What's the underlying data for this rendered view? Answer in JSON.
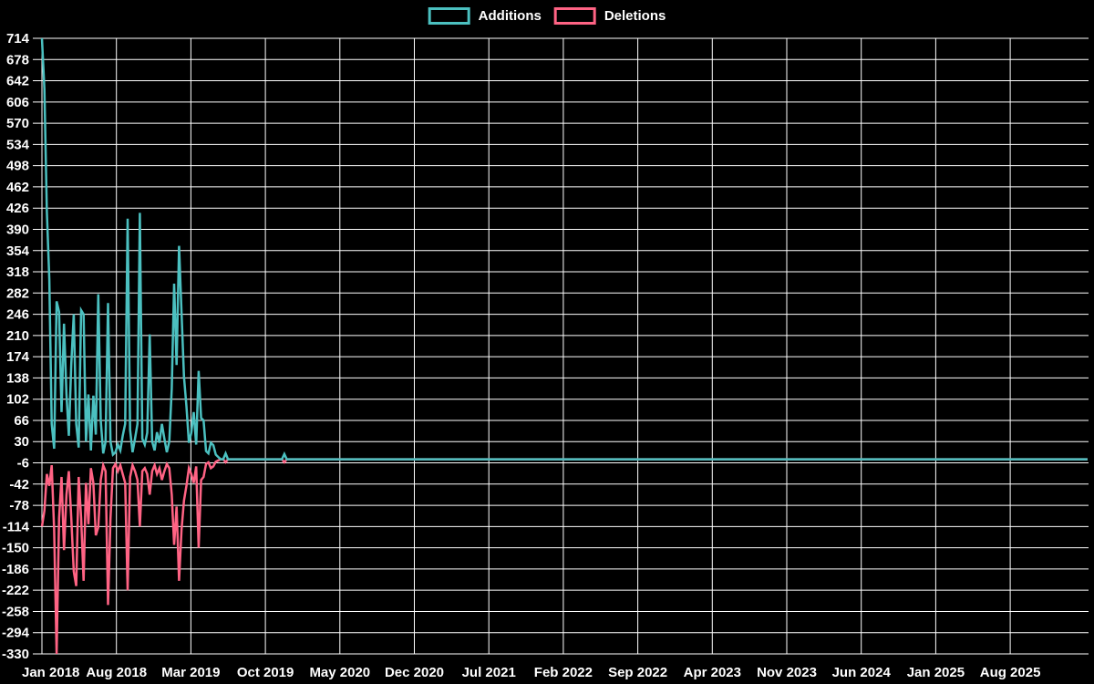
{
  "page": {
    "background": "#000000",
    "text_color": "#ffffff",
    "grid_color": "#ffffff"
  },
  "legend": {
    "items": [
      {
        "label": "Additions",
        "color": "#4bc0c0"
      },
      {
        "label": "Deletions",
        "color": "#ff6384"
      }
    ]
  },
  "chart_data": {
    "type": "line",
    "title": "",
    "legend_position": "top",
    "grid": true,
    "background": "#000000",
    "x_axis": {
      "tick_labels": [
        "Jan 2018",
        "Aug 2018",
        "Mar 2019",
        "Oct 2019",
        "May 2020",
        "Dec 2020",
        "Jul 2021",
        "Feb 2022",
        "Sep 2022",
        "Apr 2023",
        "Nov 2023",
        "Jun 2024",
        "Jan 2025",
        "Aug 2025"
      ],
      "months_per_tick": 7,
      "resolution": "weekly"
    },
    "y_axis": {
      "min": -330,
      "max": 714,
      "step": 36,
      "tick_labels": [
        "714",
        "678",
        "642",
        "606",
        "570",
        "534",
        "498",
        "462",
        "426",
        "390",
        "354",
        "318",
        "282",
        "246",
        "210",
        "174",
        "138",
        "102",
        "66",
        "30",
        "-6",
        "-42",
        "-78",
        "-114",
        "-150",
        "-186",
        "-222",
        "-258",
        "-294",
        "-330"
      ]
    },
    "total_weeks": 428,
    "series": [
      {
        "name": "Additions",
        "color": "#4bc0c0",
        "weekly_values": [
          714,
          628,
          420,
          305,
          60,
          18,
          268,
          250,
          80,
          230,
          110,
          40,
          162,
          246,
          60,
          20,
          253,
          246,
          30,
          110,
          15,
          108,
          42,
          280,
          66,
          10,
          30,
          265,
          30,
          8,
          12,
          25,
          15,
          40,
          60,
          408,
          50,
          12,
          35,
          60,
          418,
          35,
          25,
          45,
          212,
          30,
          15,
          46,
          28,
          60,
          35,
          12,
          30,
          120,
          298,
          160,
          362,
          250,
          140,
          90,
          28,
          45,
          80,
          25,
          150,
          70,
          66,
          14,
          10,
          28,
          24,
          8,
          4,
          0,
          0,
          10,
          0,
          0,
          0,
          0,
          0,
          0,
          0,
          0,
          0,
          0,
          0,
          0,
          0,
          0,
          0,
          0,
          0,
          0,
          0,
          0,
          0,
          0,
          0,
          9,
          0
        ]
      },
      {
        "name": "Deletions",
        "color": "#ff6384",
        "weekly_values": [
          -114,
          -87,
          -25,
          -45,
          -10,
          -120,
          -330,
          -100,
          -30,
          -154,
          -60,
          -20,
          -100,
          -190,
          -215,
          -30,
          -100,
          -206,
          -40,
          -110,
          -15,
          -40,
          -129,
          -115,
          -35,
          -10,
          -20,
          -247,
          -100,
          -15,
          -8,
          -20,
          -10,
          -25,
          -40,
          -222,
          -30,
          -10,
          -20,
          -35,
          -114,
          -20,
          -15,
          -25,
          -60,
          -20,
          -10,
          -25,
          -15,
          -35,
          -20,
          -8,
          -15,
          -60,
          -145,
          -80,
          -206,
          -120,
          -70,
          -45,
          -15,
          -25,
          -40,
          -12,
          -150,
          -35,
          -30,
          -8,
          -5,
          -15,
          -12,
          -4,
          -2,
          0,
          0,
          -5,
          0,
          0,
          0,
          0,
          0,
          0,
          0,
          0,
          0,
          0,
          0,
          0,
          0,
          0,
          0,
          0,
          0,
          0,
          0,
          0,
          0,
          0,
          0,
          -5,
          0
        ]
      }
    ]
  }
}
